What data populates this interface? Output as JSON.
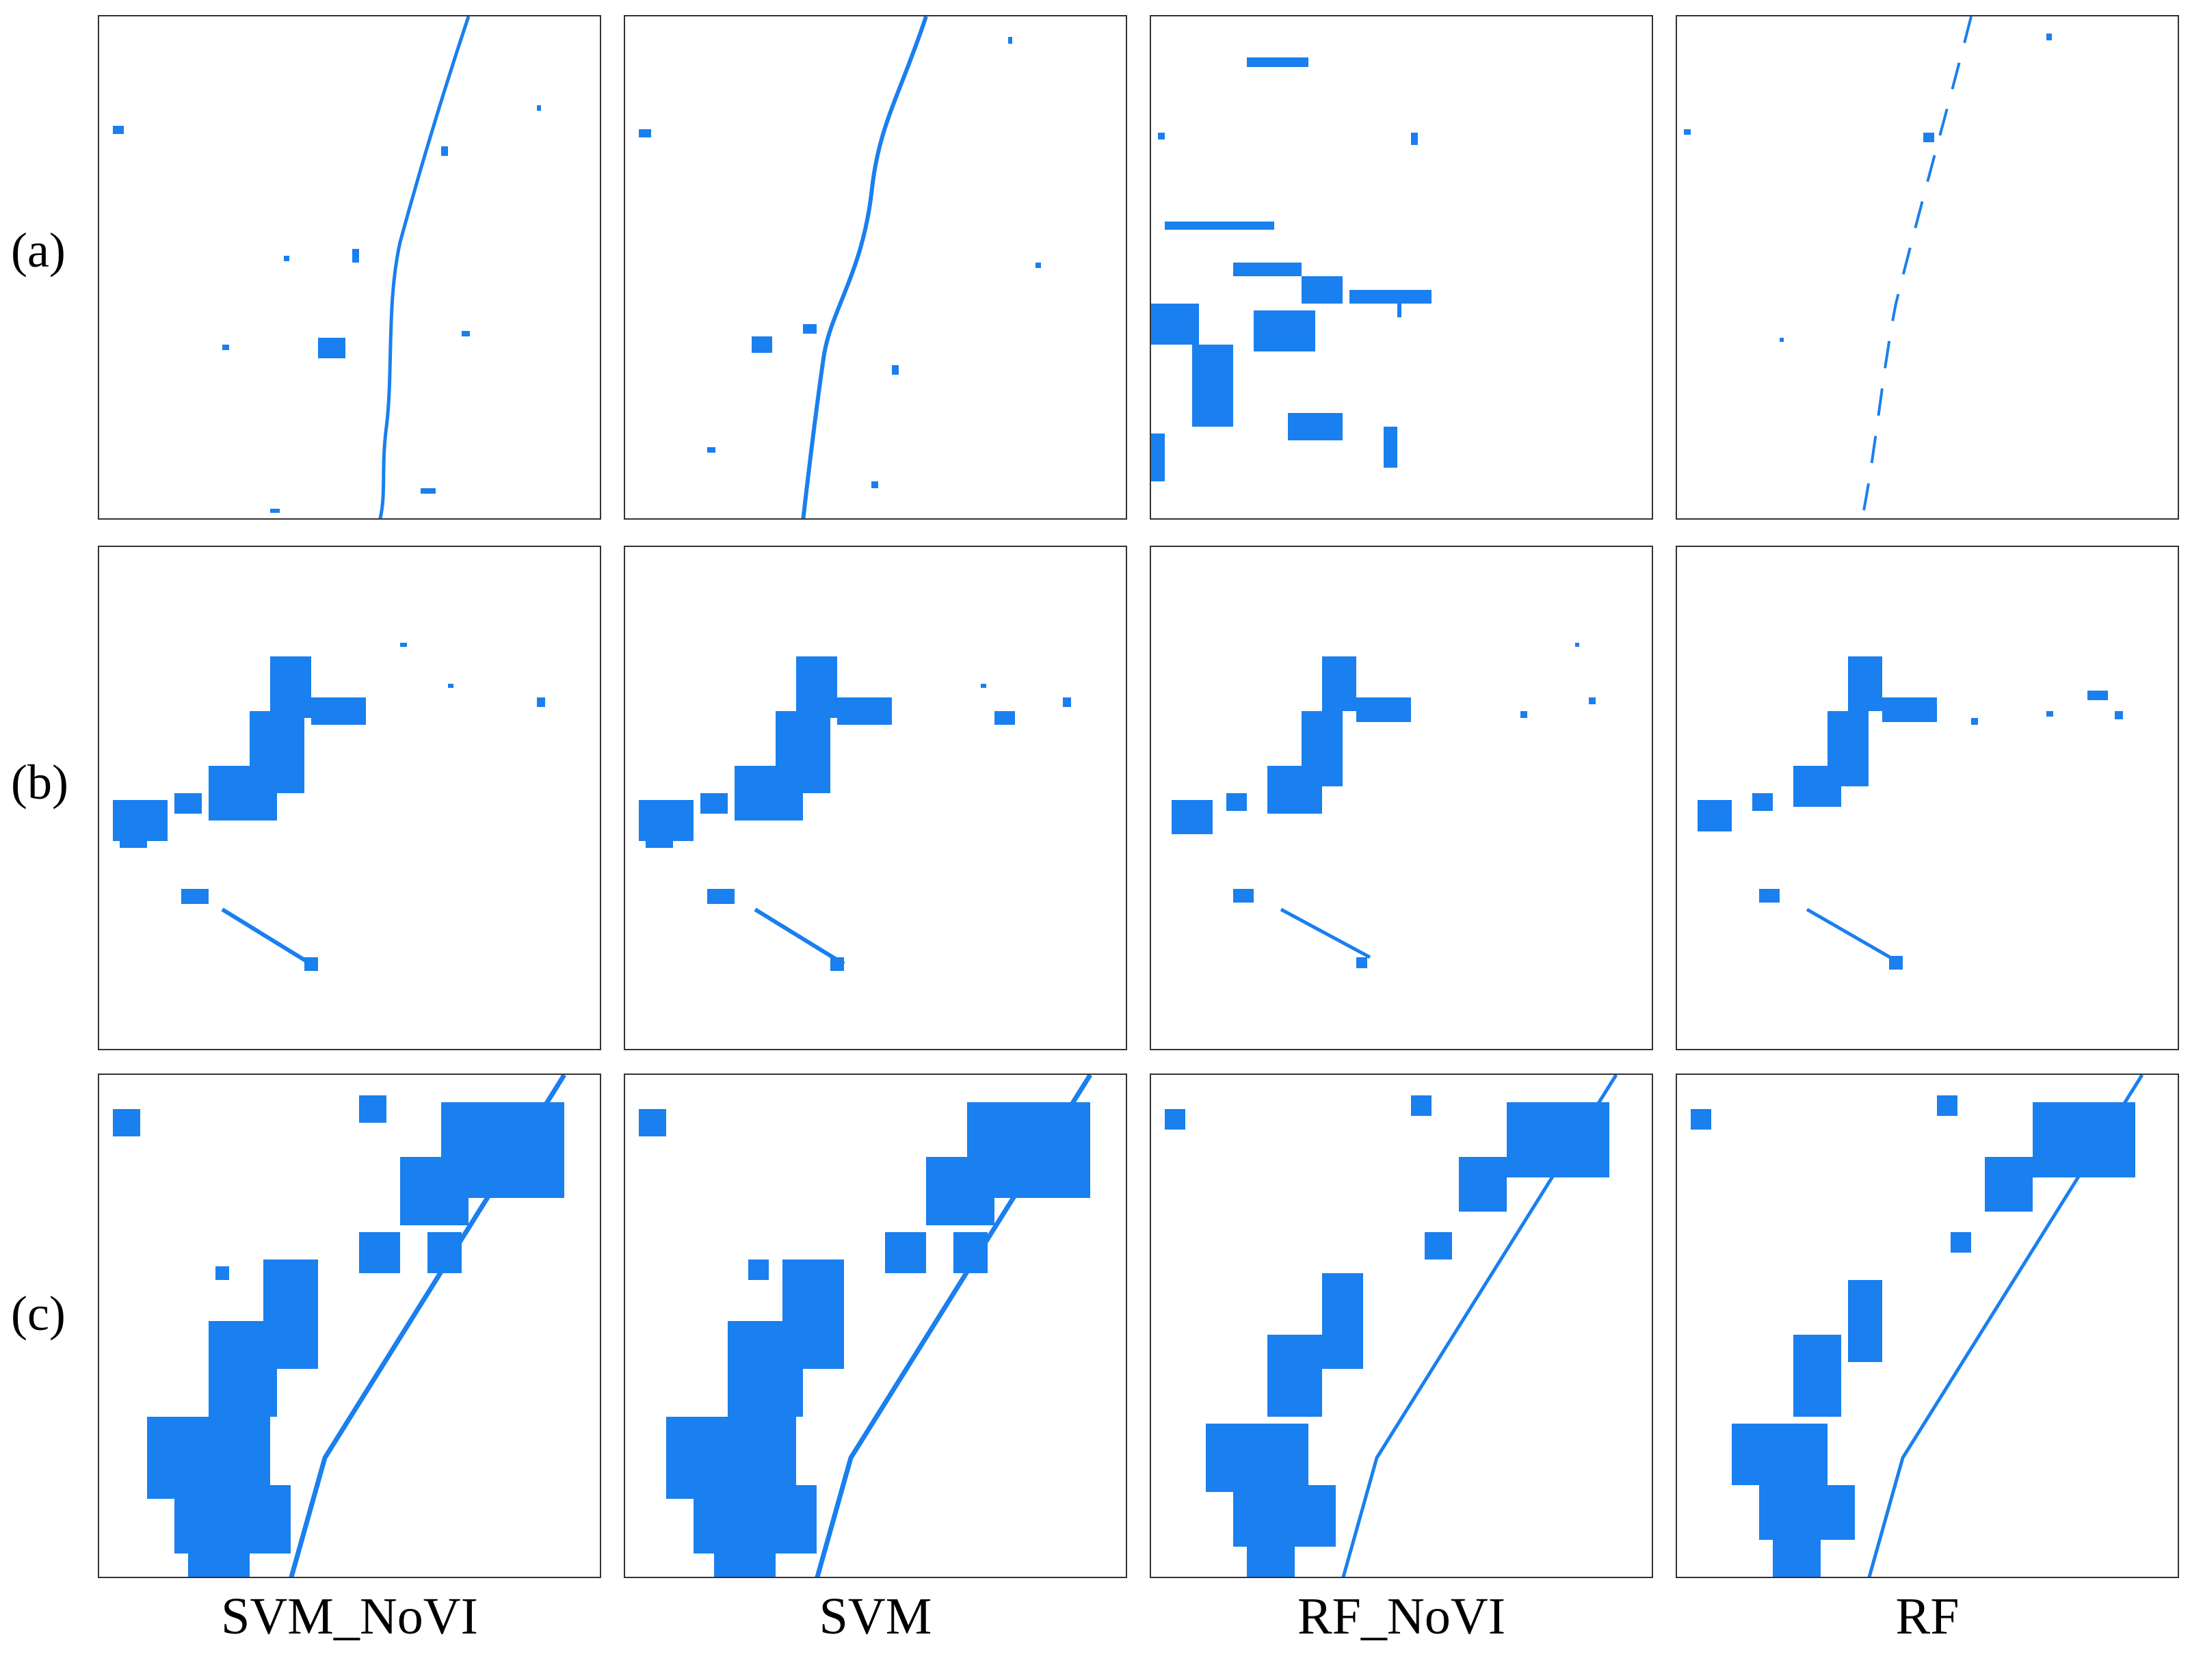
{
  "figure": {
    "row_labels": [
      "(a)",
      "(b)",
      "(c)"
    ],
    "column_labels": [
      "SVM_NoVI",
      "SVM",
      "RF_NoVI",
      "RF"
    ],
    "map_color": "#1a7fef",
    "panel_background": "#ffffff",
    "panels": [
      {
        "row": "(a)",
        "method": "SVM_NoVI"
      },
      {
        "row": "(a)",
        "method": "SVM"
      },
      {
        "row": "(a)",
        "method": "RF_NoVI"
      },
      {
        "row": "(a)",
        "method": "RF"
      },
      {
        "row": "(b)",
        "method": "SVM_NoVI"
      },
      {
        "row": "(b)",
        "method": "SVM"
      },
      {
        "row": "(b)",
        "method": "RF_NoVI"
      },
      {
        "row": "(b)",
        "method": "RF"
      },
      {
        "row": "(c)",
        "method": "SVM_NoVI"
      },
      {
        "row": "(c)",
        "method": "SVM"
      },
      {
        "row": "(c)",
        "method": "RF_NoVI"
      },
      {
        "row": "(c)",
        "method": "RF"
      }
    ]
  }
}
